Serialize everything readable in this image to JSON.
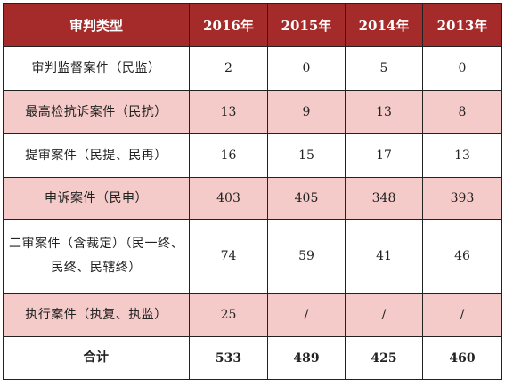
{
  "table": {
    "headers": [
      "审判类型",
      "2016年",
      "2015年",
      "2014年",
      "2013年"
    ],
    "rows": [
      {
        "type": "审判监督案件（民监）",
        "values": [
          "2",
          "0",
          "5",
          "0"
        ]
      },
      {
        "type": "最高检抗诉案件（民抗）",
        "values": [
          "13",
          "9",
          "13",
          "8"
        ]
      },
      {
        "type": "提审案件（民提、民再）",
        "values": [
          "16",
          "15",
          "17",
          "13"
        ]
      },
      {
        "type": "申诉案件（民申）",
        "values": [
          "403",
          "405",
          "348",
          "393"
        ]
      },
      {
        "type": "二审案件（含裁定）（民一终、民终、民辖终）",
        "values": [
          "74",
          "59",
          "41",
          "46"
        ]
      },
      {
        "type": "执行案件（执复、执监）",
        "values": [
          "25",
          "/",
          "/",
          "/"
        ]
      }
    ],
    "total": {
      "type": "合计",
      "values": [
        "533",
        "489",
        "425",
        "460"
      ]
    }
  },
  "colors": {
    "header_bg": "#a52a2a",
    "header_text": "#ffffff",
    "stripe_bg": "#f4cbc9",
    "row_bg": "#ffffff",
    "border": "#222222"
  }
}
